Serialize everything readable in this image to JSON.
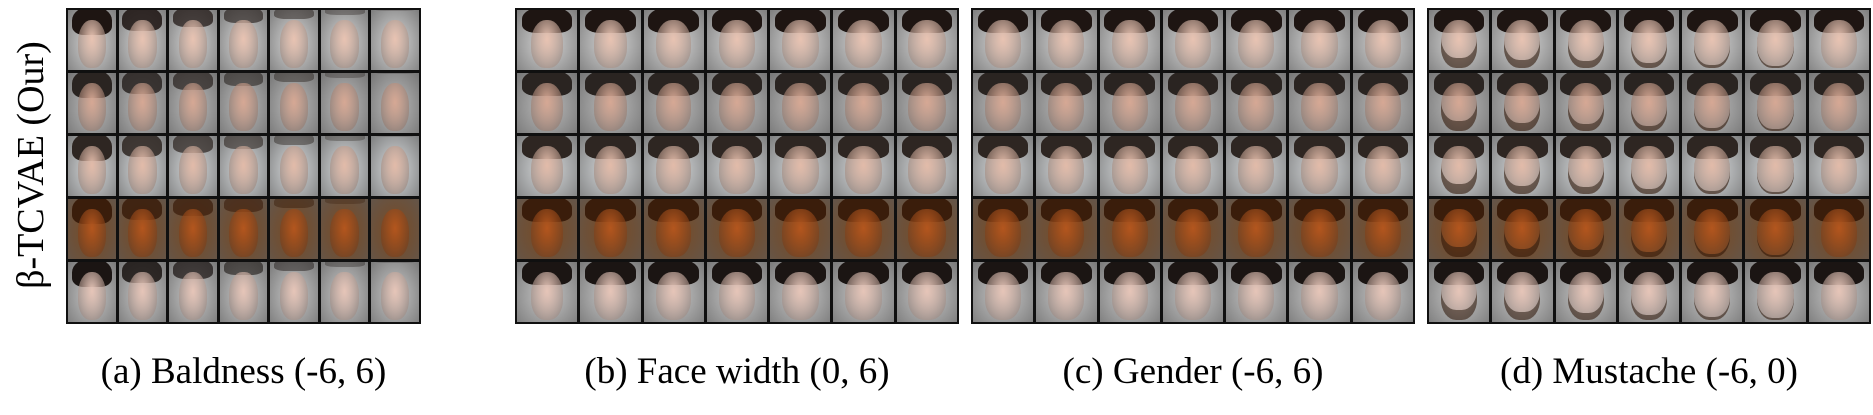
{
  "row_label": "β-TCVAE (Our)",
  "panels": [
    {
      "caption": "(a) Baldness (-6, 6)"
    },
    {
      "caption": "(b) Face width (0, 6)"
    },
    {
      "caption": "(c) Gender (-6, 6)"
    },
    {
      "caption": "(d) Mustache (-6, 0)"
    }
  ],
  "grid": {
    "rows": 5,
    "columns": 7
  },
  "row_tones": {
    "background": [
      "#d8d8d8",
      "#bdbdbd",
      "#d9dcde",
      "#7a4a22",
      "#c9c9c9"
    ],
    "skin": [
      "#e8c3b2",
      "#d6a894",
      "#e2bba9",
      "#b3561e",
      "#e6c5b8"
    ],
    "hair": [
      "#1e1512",
      "#2a2421",
      "#2e2622",
      "#3a1d0b",
      "#1b1513"
    ]
  },
  "colors": {
    "panel_border": "#101010",
    "text": "#000000"
  }
}
